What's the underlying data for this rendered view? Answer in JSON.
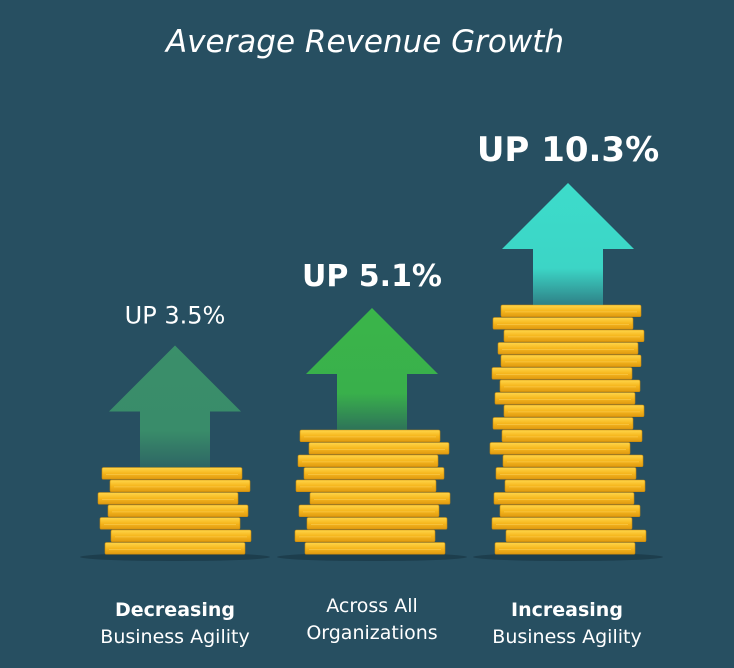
{
  "chart_data": {
    "type": "bar",
    "title": "Average Revenue Growth",
    "categories": [
      {
        "lines": [
          "Decreasing",
          "Business Agility"
        ],
        "bold": [
          true,
          false
        ]
      },
      {
        "lines": [
          "Across All",
          "Organizations"
        ],
        "bold": [
          false,
          false
        ]
      },
      {
        "lines": [
          "Increasing",
          "Business Agility"
        ],
        "bold": [
          true,
          false
        ]
      }
    ],
    "values": [
      3.5,
      5.1,
      10.3
    ],
    "value_labels": [
      "UP 3.5%",
      "UP 5.1%",
      "UP 10.3%"
    ],
    "unit": "%",
    "colors": {
      "background": "#274f61",
      "arrows": [
        "#3a8f6a",
        "#3ab54a",
        "#3ddccb"
      ],
      "coin": "#f6b71d",
      "coin_edge": "#c98a0c"
    }
  }
}
